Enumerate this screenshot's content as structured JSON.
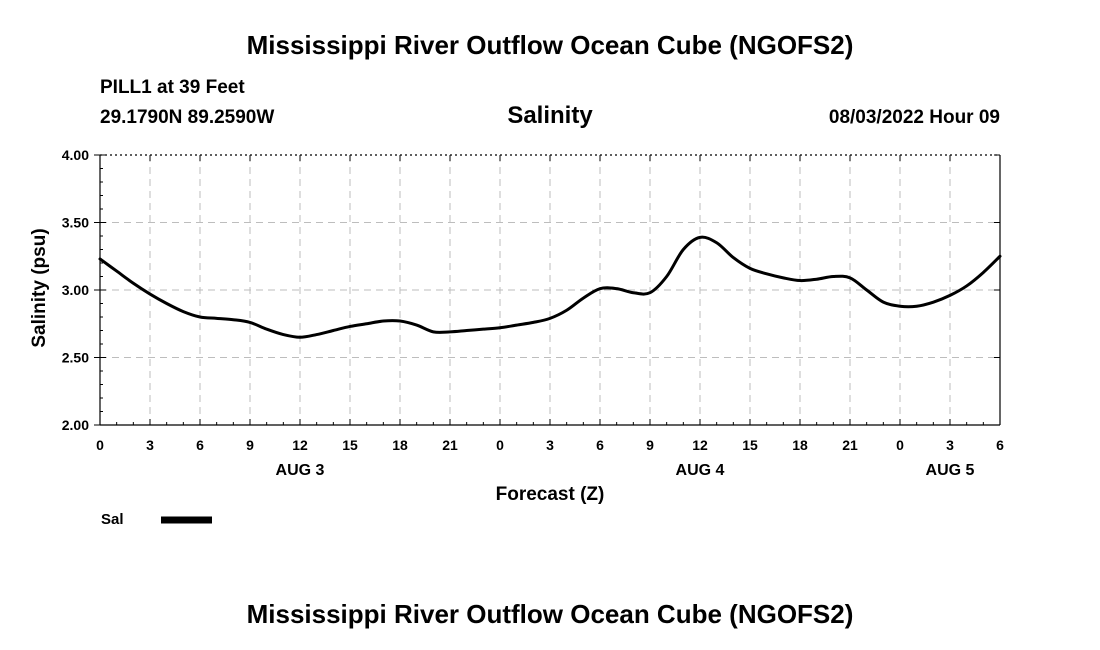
{
  "header": {
    "title": "Mississippi River Outflow Ocean Cube (NGOFS2)",
    "station": "PILL1 at 39 Feet",
    "coords": "29.1790N  89.2590W",
    "timestamp": "08/03/2022 Hour 09"
  },
  "footer": {
    "title": "Mississippi River Outflow Ocean Cube (NGOFS2)"
  },
  "chart_data": {
    "type": "line",
    "title": "Salinity",
    "xlabel": "Forecast (Z)",
    "ylabel": "Salinity (psu)",
    "xlim": [
      0,
      54
    ],
    "ylim": [
      2.0,
      4.0
    ],
    "grid": true,
    "x_ticks": [
      0,
      3,
      6,
      9,
      12,
      15,
      18,
      21,
      24,
      27,
      30,
      33,
      36,
      39,
      42,
      45,
      48,
      51,
      54
    ],
    "x_tick_labels": [
      "0",
      "3",
      "6",
      "9",
      "12",
      "15",
      "18",
      "21",
      "0",
      "3",
      "6",
      "9",
      "12",
      "15",
      "18",
      "21",
      "0",
      "3",
      "6"
    ],
    "y_ticks": [
      2.0,
      2.5,
      3.0,
      3.5,
      4.0
    ],
    "y_tick_labels": [
      "2.00",
      "2.50",
      "3.00",
      "3.50",
      "4.00"
    ],
    "date_labels": [
      {
        "x": 12,
        "label": "AUG 3"
      },
      {
        "x": 36,
        "label": "AUG 4"
      },
      {
        "x": 51,
        "label": "AUG 5"
      }
    ],
    "legend": {
      "placement": "bottom-left",
      "entries": [
        "Sal"
      ]
    },
    "series": [
      {
        "name": "Sal",
        "color": "#000000",
        "x": [
          0,
          1,
          2,
          3,
          4,
          5,
          6,
          7,
          8,
          9,
          10,
          11,
          12,
          13,
          14,
          15,
          16,
          17,
          18,
          19,
          20,
          21,
          22,
          23,
          24,
          25,
          26,
          27,
          28,
          29,
          30,
          31,
          32,
          33,
          34,
          35,
          36,
          37,
          38,
          39,
          40,
          41,
          42,
          43,
          44,
          45,
          46,
          47,
          48,
          49,
          50,
          51,
          52,
          53,
          54
        ],
        "values": [
          3.23,
          3.14,
          3.05,
          2.97,
          2.9,
          2.84,
          2.8,
          2.79,
          2.78,
          2.76,
          2.71,
          2.67,
          2.65,
          2.67,
          2.7,
          2.73,
          2.75,
          2.77,
          2.77,
          2.74,
          2.69,
          2.69,
          2.7,
          2.71,
          2.72,
          2.74,
          2.76,
          2.79,
          2.85,
          2.94,
          3.01,
          3.01,
          2.98,
          2.98,
          3.1,
          3.3,
          3.39,
          3.35,
          3.24,
          3.16,
          3.12,
          3.09,
          3.07,
          3.08,
          3.1,
          3.09,
          3.0,
          2.91,
          2.88,
          2.88,
          2.91,
          2.96,
          3.03,
          3.13,
          3.25
        ]
      }
    ]
  }
}
